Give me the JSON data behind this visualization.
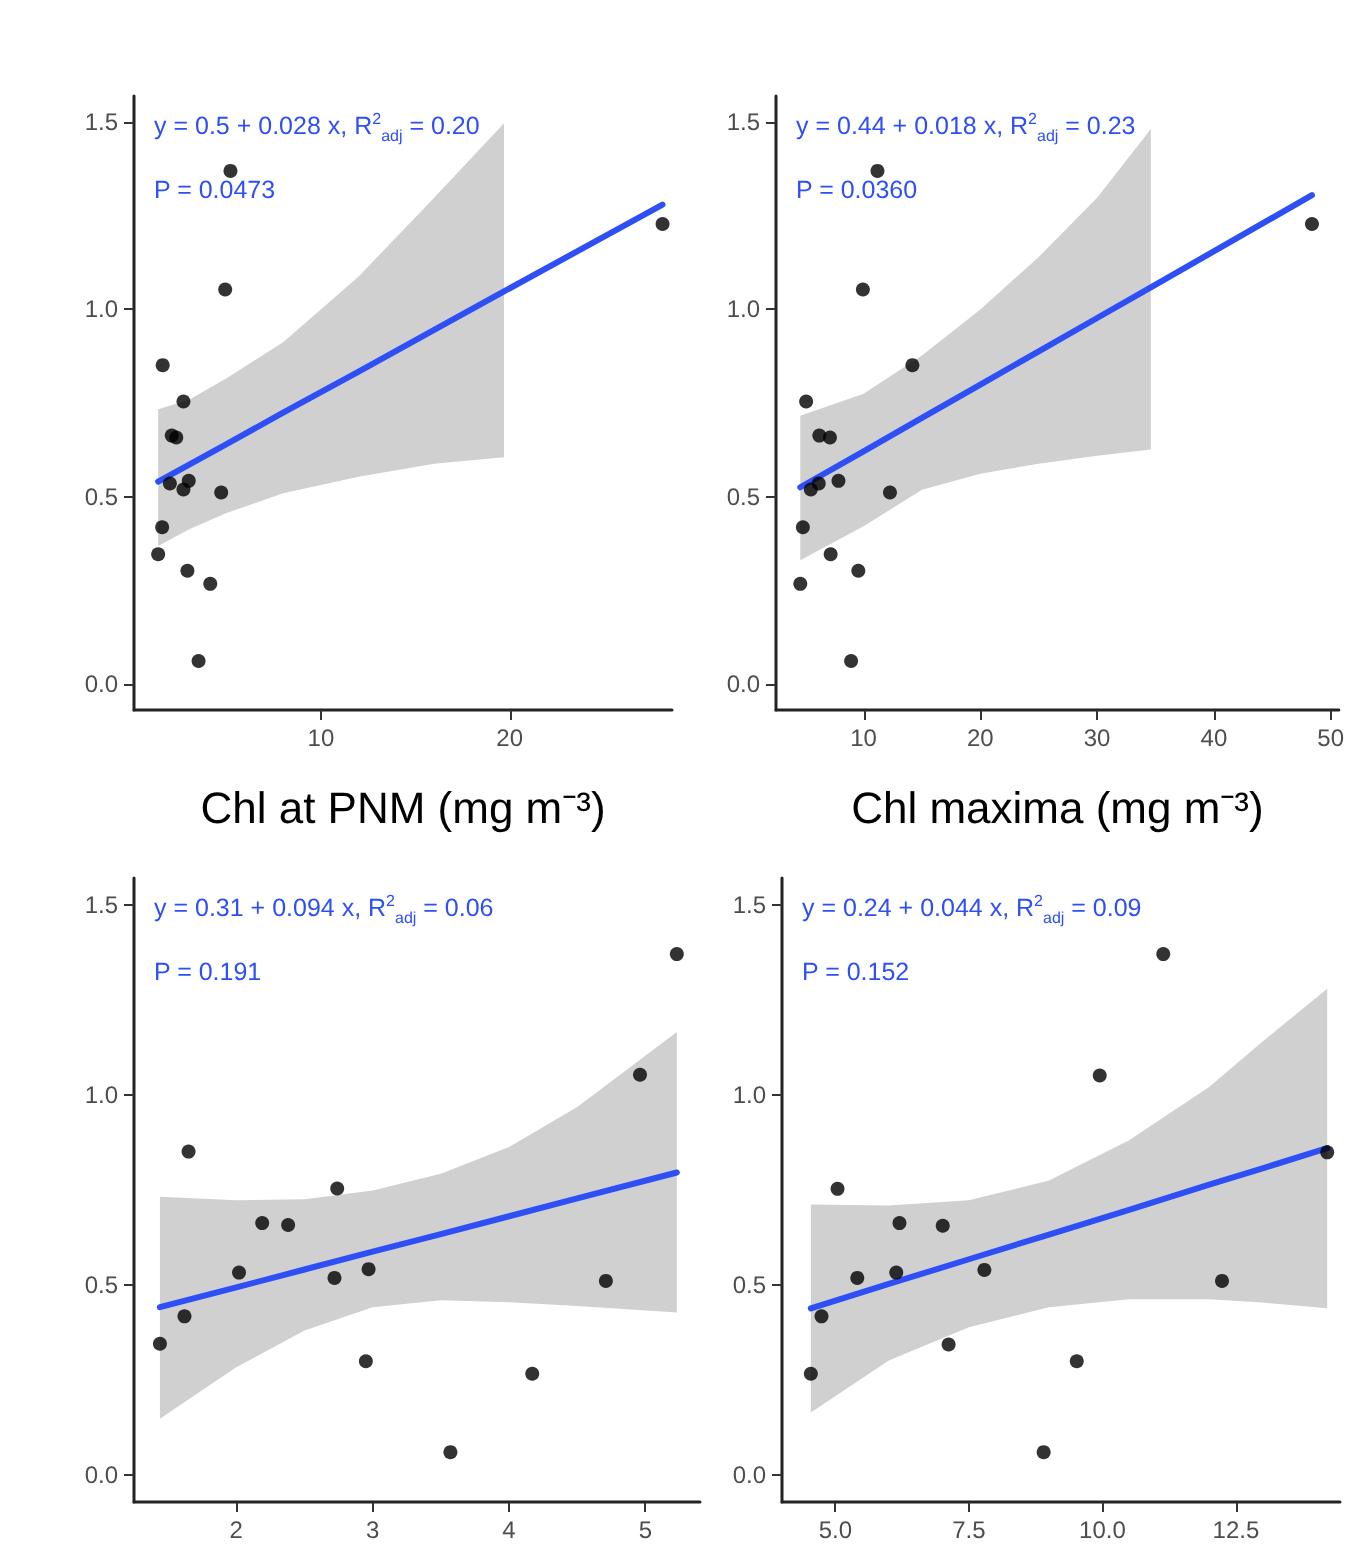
{
  "chart_data": [
    {
      "type": "scatter",
      "xlabel": "Chl at PNM (mg m⁻³)",
      "annotations": [
        "y = 0.5 + 0.028 x, R$^{2}$$_{adj}$ = 0.20",
        "P = 0.0473"
      ],
      "xlim": [
        0.1,
        28.6
      ],
      "xticks": [
        10,
        20
      ],
      "ylim": [
        -0.07,
        1.57
      ],
      "yticks": [
        {
          "value": 0,
          "label": "0.0"
        },
        {
          "value": 0.5,
          "label": "0.5"
        },
        {
          "value": 1,
          "label": "1.0"
        },
        {
          "value": 1.5,
          "label": "1.5"
        }
      ],
      "series": [
        {
          "type": "line",
          "color": "#2d4ff5",
          "x": [
            1.38,
            3,
            5,
            8,
            12,
            16,
            19.7,
            28.1
          ],
          "values": [
            0.54,
            0.585,
            0.64,
            0.724,
            0.834,
            0.945,
            1.048,
            1.28
          ],
          "lower": [
            0.368,
            0.412,
            0.456,
            0.509,
            0.553,
            0.588,
            0.605,
            null
          ],
          "upper": [
            0.733,
            0.758,
            0.816,
            0.912,
            1.088,
            1.298,
            1.497,
            null
          ]
        },
        {
          "marker": "circle",
          "color": "#000000",
          "x": [
            1.38,
            1.59,
            1.62,
            2.0,
            2.1,
            2.34,
            2.72,
            2.72,
            3.0,
            2.93,
            3.52,
            4.14,
            4.72,
            4.93,
            5.21,
            28.1
          ],
          "values": [
            0.346,
            0.418,
            0.851,
            0.535,
            0.663,
            0.658,
            0.754,
            0.519,
            0.542,
            0.302,
            0.061,
            0.267,
            0.511,
            1.053,
            1.37,
            1.228
          ]
        }
      ]
    },
    {
      "type": "scatter",
      "xlabel": "Chl maxima (mg m⁻³)",
      "annotations": [
        "y = 0.44 + 0.018 x, R$^{2}$$_{adj}$ = 0.23",
        "P = 0.0360"
      ],
      "xlim": [
        2.5,
        50.7
      ],
      "xticks": [
        10,
        20,
        30,
        40,
        50
      ],
      "ylim": [
        -0.07,
        1.57
      ],
      "yticks": [
        {
          "value": 0,
          "label": "0.0"
        },
        {
          "value": 0.5,
          "label": "0.5"
        },
        {
          "value": 1,
          "label": "1.0"
        },
        {
          "value": 1.5,
          "label": "1.5"
        }
      ],
      "series": [
        {
          "type": "line",
          "color": "#2d4ff5",
          "x": [
            4.58,
            10,
            15,
            20,
            25,
            30,
            34.6,
            48.4
          ],
          "values": [
            0.525,
            0.621,
            0.71,
            0.799,
            0.888,
            0.977,
            1.059,
            1.305
          ],
          "lower": [
            0.33,
            0.421,
            0.518,
            0.561,
            0.588,
            0.609,
            0.626,
            null
          ],
          "upper": [
            0.716,
            0.775,
            0.877,
            1.0,
            1.14,
            1.298,
            1.482,
            null
          ]
        },
        {
          "marker": "circle",
          "color": "#000000",
          "x": [
            4.58,
            4.8,
            5.08,
            5.48,
            6.16,
            6.21,
            7.12,
            7.18,
            7.85,
            8.93,
            9.55,
            9.94,
            11.19,
            12.26,
            14.18,
            48.4
          ],
          "values": [
            0.267,
            0.418,
            0.754,
            0.519,
            0.535,
            0.663,
            0.658,
            0.346,
            0.542,
            0.061,
            0.302,
            1.053,
            1.37,
            0.511,
            0.851,
            1.228
          ]
        }
      ]
    },
    {
      "type": "scatter",
      "annotations": [
        "y = 0.31 + 0.094 x, R$^{2}$$_{adj}$ = 0.06",
        "P = 0.191"
      ],
      "xlim": [
        1.25,
        5.4
      ],
      "xticks": [
        2,
        3,
        4,
        5
      ],
      "ylim": [
        -0.07,
        1.57
      ],
      "yticks": [
        {
          "value": 0,
          "label": "0.0"
        },
        {
          "value": 0.5,
          "label": "0.5"
        },
        {
          "value": 1,
          "label": "1.0"
        },
        {
          "value": 1.5,
          "label": "1.5"
        }
      ],
      "series": [
        {
          "type": "line",
          "color": "#2d4ff5",
          "x": [
            1.44,
            2,
            2.5,
            3,
            3.5,
            4,
            4.5,
            5.23
          ],
          "values": [
            0.442,
            0.494,
            0.541,
            0.588,
            0.634,
            0.681,
            0.728,
            0.796
          ],
          "lower": [
            0.149,
            0.284,
            0.381,
            0.442,
            0.46,
            0.455,
            0.445,
            0.428
          ],
          "upper": [
            0.732,
            0.723,
            0.726,
            0.749,
            0.793,
            0.863,
            0.968,
            1.165
          ]
        },
        {
          "marker": "circle",
          "color": "#000000",
          "x": [
            1.44,
            1.62,
            1.65,
            2.02,
            2.19,
            2.38,
            2.74,
            2.72,
            2.97,
            2.95,
            3.57,
            4.17,
            4.71,
            4.96,
            5.23
          ],
          "values": [
            0.346,
            0.418,
            0.851,
            0.533,
            0.663,
            0.658,
            0.754,
            0.519,
            0.542,
            0.3,
            0.061,
            0.267,
            0.511,
            1.053,
            1.37
          ]
        }
      ]
    },
    {
      "type": "scatter",
      "annotations": [
        "y = 0.24 + 0.044 x, R$^{2}$$_{adj}$ = 0.09",
        "P = 0.152"
      ],
      "xlim": [
        4.0,
        14.45
      ],
      "xticks": [
        {
          "value": 5,
          "label": "5.0"
        },
        {
          "value": 7.5,
          "label": "7.5"
        },
        {
          "value": 10,
          "label": "10.0"
        },
        {
          "value": 12.5,
          "label": "12.5"
        }
      ],
      "ylim": [
        -0.07,
        1.57
      ],
      "yticks": [
        {
          "value": 0,
          "label": "0.0"
        },
        {
          "value": 0.5,
          "label": "0.5"
        },
        {
          "value": 1,
          "label": "1.0"
        },
        {
          "value": 1.5,
          "label": "1.5"
        }
      ],
      "series": [
        {
          "type": "line",
          "color": "#2d4ff5",
          "x": [
            4.54,
            6,
            7.5,
            9,
            10.5,
            12,
            13,
            14.21
          ],
          "values": [
            0.439,
            0.503,
            0.568,
            0.633,
            0.698,
            0.764,
            0.807,
            0.86
          ],
          "lower": [
            0.165,
            0.302,
            0.389,
            0.442,
            0.463,
            0.463,
            0.454,
            0.439
          ],
          "upper": [
            0.712,
            0.709,
            0.723,
            0.775,
            0.881,
            1.021,
            1.14,
            1.279
          ]
        },
        {
          "marker": "circle",
          "color": "#000000",
          "x": [
            4.54,
            4.74,
            5.04,
            5.41,
            6.14,
            6.2,
            7.01,
            7.12,
            7.79,
            8.9,
            9.52,
            9.95,
            11.14,
            12.24,
            14.21
          ],
          "values": [
            0.267,
            0.418,
            0.753,
            0.519,
            0.533,
            0.663,
            0.656,
            0.344,
            0.54,
            0.061,
            0.3,
            1.051,
            1.37,
            0.511,
            0.849
          ]
        }
      ]
    }
  ]
}
